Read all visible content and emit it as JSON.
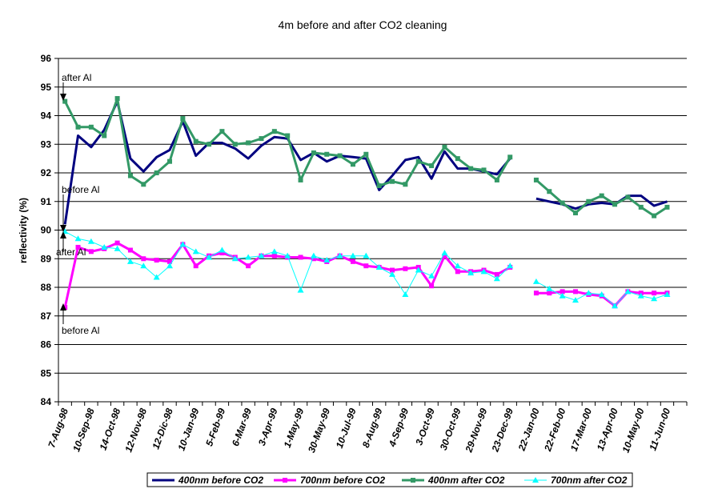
{
  "chart_data": {
    "type": "line",
    "title": "4m before and after CO2 cleaning",
    "xlabel": "",
    "ylabel": "reflectivity (%)",
    "ylim": [
      84,
      96
    ],
    "yticks": [
      "84",
      "85",
      "86",
      "87",
      "88",
      "89",
      "90",
      "91",
      "92",
      "93",
      "94",
      "95",
      "96"
    ],
    "grid": "horizontal",
    "legend_position": "bottom",
    "x_tick_labels": [
      {
        "index": 0,
        "label": "7-Aug-98"
      },
      {
        "index": 2,
        "label": "10-Sep-98"
      },
      {
        "index": 4,
        "label": "14-Oct-98"
      },
      {
        "index": 6,
        "label": "12-Nov-98"
      },
      {
        "index": 8,
        "label": "12-Dic-98"
      },
      {
        "index": 10,
        "label": "10-Jan-99"
      },
      {
        "index": 12,
        "label": "5-Feb-99"
      },
      {
        "index": 14,
        "label": "6-Mar-99"
      },
      {
        "index": 16,
        "label": "3-Apr-99"
      },
      {
        "index": 18,
        "label": "1-May-99"
      },
      {
        "index": 20,
        "label": "30-May-99"
      },
      {
        "index": 22,
        "label": "10-Jul-99"
      },
      {
        "index": 24,
        "label": "8-Aug-99"
      },
      {
        "index": 26,
        "label": "4-Sep-99"
      },
      {
        "index": 28,
        "label": "3-Oct-99"
      },
      {
        "index": 30,
        "label": "30-Oct-99"
      },
      {
        "index": 32,
        "label": "29-Nov-99"
      },
      {
        "index": 34,
        "label": "23-Dec-99"
      },
      {
        "index": 36,
        "label": "22-Jan-00"
      },
      {
        "index": 38,
        "label": "22-Feb-00"
      },
      {
        "index": 40,
        "label": "17-Mar-00"
      },
      {
        "index": 42,
        "label": "13-Apr-00"
      },
      {
        "index": 44,
        "label": "10-May-00"
      },
      {
        "index": 46,
        "label": "11-Jun-00"
      }
    ],
    "n_points": 48,
    "series": [
      {
        "name": "400nm before CO2",
        "color": "#000080",
        "marker": "none",
        "values": [
          90.2,
          93.3,
          92.9,
          93.5,
          94.5,
          92.5,
          92.05,
          92.55,
          92.8,
          93.8,
          92.6,
          93.05,
          93.05,
          92.85,
          92.5,
          92.95,
          93.25,
          93.2,
          92.45,
          92.7,
          92.4,
          92.6,
          92.55,
          92.5,
          91.4,
          91.9,
          92.45,
          92.55,
          91.8,
          92.75,
          92.15,
          92.15,
          92.05,
          91.95,
          92.5,
          null,
          91.1,
          91.0,
          90.9,
          90.75,
          90.9,
          90.95,
          90.9,
          91.2,
          91.2,
          90.85,
          91.0,
          null
        ]
      },
      {
        "name": "700nm before CO2",
        "color": "#ff00ff",
        "marker": "square",
        "values": [
          87.3,
          89.4,
          89.25,
          89.35,
          89.55,
          89.3,
          89.0,
          88.95,
          88.9,
          89.5,
          88.75,
          89.1,
          89.2,
          89.05,
          88.75,
          89.1,
          89.1,
          89.05,
          89.05,
          89.0,
          88.9,
          89.1,
          88.9,
          88.75,
          88.7,
          88.6,
          88.65,
          88.7,
          88.05,
          89.1,
          88.55,
          88.55,
          88.6,
          88.45,
          88.7,
          null,
          87.8,
          87.8,
          87.85,
          87.85,
          87.75,
          87.7,
          87.35,
          87.85,
          87.8,
          87.8,
          87.8,
          null
        ]
      },
      {
        "name": "400nm after CO2",
        "color": "#339966",
        "marker": "square",
        "values": [
          94.5,
          93.6,
          93.6,
          93.3,
          94.6,
          91.9,
          91.6,
          92.0,
          92.4,
          93.9,
          93.1,
          93.0,
          93.45,
          93.0,
          93.05,
          93.2,
          93.45,
          93.3,
          91.75,
          92.7,
          92.65,
          92.6,
          92.3,
          92.65,
          91.55,
          91.7,
          91.6,
          92.4,
          92.25,
          92.9,
          92.5,
          92.15,
          92.1,
          91.75,
          92.55,
          null,
          91.75,
          91.35,
          90.95,
          90.6,
          91.0,
          91.2,
          90.9,
          91.15,
          90.8,
          90.5,
          90.8,
          null
        ]
      },
      {
        "name": "700nm after CO2",
        "color": "#00ffff",
        "marker": "triangle",
        "values": [
          89.95,
          89.7,
          89.6,
          89.4,
          89.35,
          88.9,
          88.75,
          88.35,
          88.75,
          89.5,
          89.25,
          89.05,
          89.3,
          89.0,
          89.05,
          89.1,
          89.25,
          89.1,
          87.9,
          89.1,
          88.95,
          89.1,
          89.1,
          89.1,
          88.7,
          88.45,
          87.75,
          88.6,
          88.4,
          89.2,
          88.75,
          88.5,
          88.55,
          88.3,
          88.75,
          null,
          88.2,
          87.95,
          87.7,
          87.55,
          87.8,
          87.75,
          87.35,
          87.85,
          87.7,
          87.6,
          87.75,
          null
        ]
      }
    ],
    "annotations": [
      {
        "text": "after Al",
        "index": 0,
        "value": 94.5,
        "direction": "down"
      },
      {
        "text": "before Al",
        "index": 0,
        "value": 90.2,
        "direction": "down"
      },
      {
        "text": "after Al",
        "index": 0,
        "value": 89.95,
        "direction": "up"
      },
      {
        "text": "before Al",
        "index": 0,
        "value": 87.3,
        "direction": "up"
      }
    ]
  }
}
